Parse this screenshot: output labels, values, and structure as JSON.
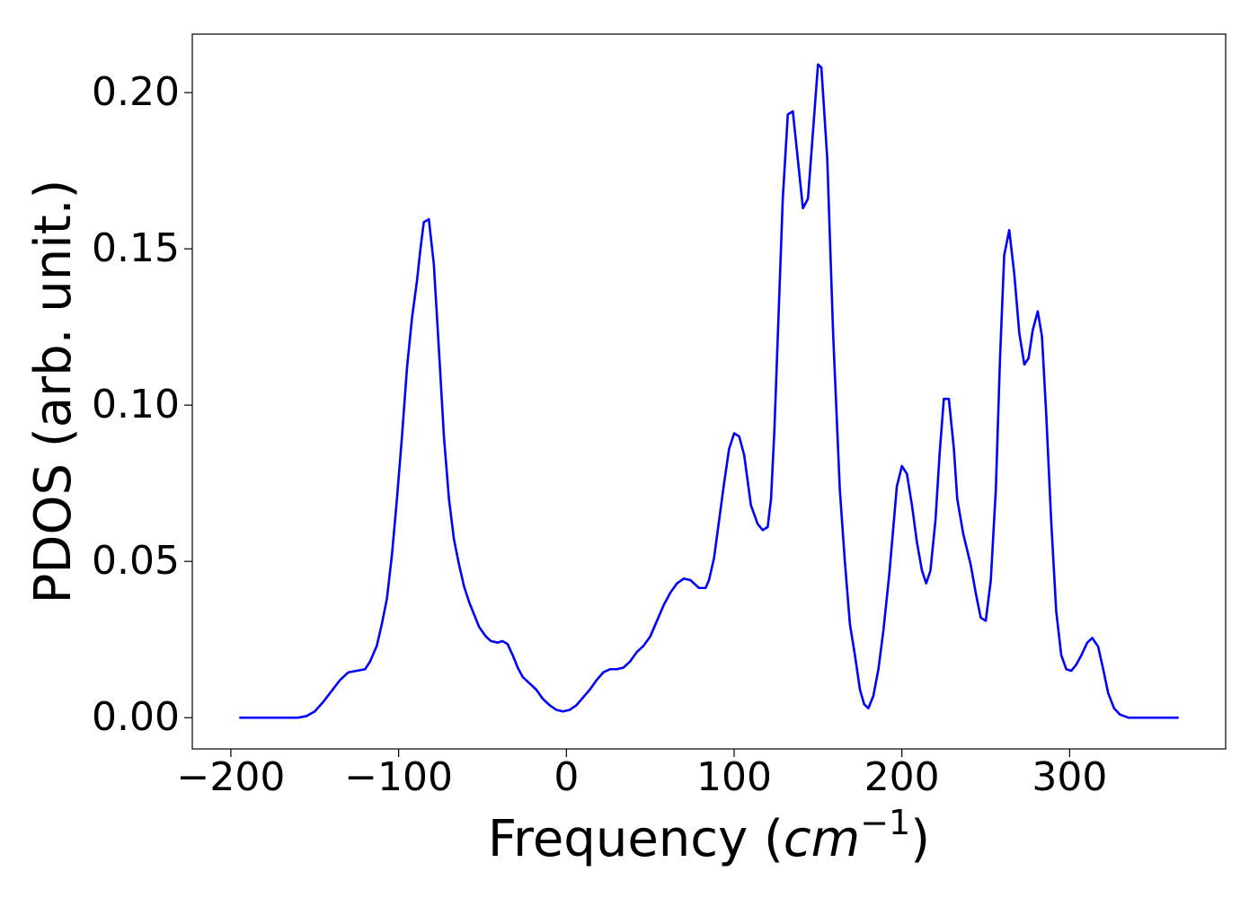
{
  "chart_data": {
    "type": "line",
    "xlabel": [
      "Frequency (",
      "cm",
      "−1",
      ")"
    ],
    "ylabel": "PDOS (arb. unit.)",
    "x": [
      -195,
      -160,
      -155,
      -150,
      -145,
      -140,
      -135,
      -130,
      -125,
      -120,
      -117,
      -113,
      -110,
      -107,
      -104,
      -101,
      -98,
      -95,
      -92,
      -89,
      -87,
      -85,
      -82,
      -79,
      -76,
      -73,
      -70,
      -67,
      -64,
      -61,
      -58,
      -55,
      -52,
      -48,
      -45,
      -41,
      -38,
      -35,
      -32,
      -29,
      -26,
      -22,
      -18,
      -14,
      -10,
      -6,
      -2,
      2,
      6,
      10,
      14,
      18,
      22,
      26,
      30,
      34,
      38,
      42,
      46,
      50,
      54,
      58,
      62,
      66,
      70,
      74,
      79,
      83,
      85,
      88,
      91,
      94,
      97,
      100,
      103,
      106,
      110,
      114,
      117,
      120,
      122,
      124,
      129,
      132,
      135,
      141,
      144,
      150,
      152,
      155.5,
      159,
      163,
      166,
      169,
      172,
      175,
      177.5,
      180,
      183,
      186,
      189,
      192.5,
      195,
      197,
      200,
      203,
      206,
      209,
      212,
      214.5,
      217,
      220,
      222.5,
      225,
      228,
      231,
      233,
      236.5,
      241,
      244,
      247,
      250,
      253,
      256,
      258.5,
      261,
      264,
      267,
      270,
      273,
      275.5,
      278,
      281,
      283.5,
      286,
      289,
      292,
      295,
      298,
      301,
      304,
      307,
      310.5,
      313.5,
      317,
      320,
      323,
      326.5,
      330,
      335,
      365
    ],
    "values": [
      0,
      0,
      0.0005,
      0.002,
      0.005,
      0.0085,
      0.012,
      0.0145,
      0.015,
      0.0155,
      0.018,
      0.023,
      0.03,
      0.038,
      0.052,
      0.07,
      0.09,
      0.112,
      0.128,
      0.14,
      0.15,
      0.1585,
      0.1595,
      0.145,
      0.118,
      0.09,
      0.07,
      0.057,
      0.049,
      0.042,
      0.037,
      0.033,
      0.029,
      0.026,
      0.0245,
      0.024,
      0.0245,
      0.0235,
      0.02,
      0.016,
      0.013,
      0.011,
      0.009,
      0.006,
      0.004,
      0.0025,
      0.002,
      0.0025,
      0.004,
      0.0065,
      0.009,
      0.012,
      0.0145,
      0.0155,
      0.0155,
      0.016,
      0.018,
      0.021,
      0.023,
      0.026,
      0.031,
      0.036,
      0.04,
      0.043,
      0.0445,
      0.044,
      0.0415,
      0.0415,
      0.044,
      0.051,
      0.063,
      0.075,
      0.086,
      0.091,
      0.09,
      0.084,
      0.068,
      0.062,
      0.06,
      0.061,
      0.07,
      0.092,
      0.166,
      0.193,
      0.194,
      0.163,
      0.166,
      0.209,
      0.208,
      0.179,
      0.123,
      0.073,
      0.05,
      0.03,
      0.02,
      0.009,
      0.0043,
      0.003,
      0.007,
      0.0155,
      0.028,
      0.046,
      0.0615,
      0.074,
      0.0805,
      0.078,
      0.068,
      0.056,
      0.047,
      0.043,
      0.047,
      0.063,
      0.0845,
      0.102,
      0.102,
      0.086,
      0.07,
      0.059,
      0.049,
      0.04,
      0.032,
      0.031,
      0.044,
      0.073,
      0.115,
      0.148,
      0.156,
      0.142,
      0.123,
      0.113,
      0.115,
      0.124,
      0.13,
      0.122,
      0.0975,
      0.063,
      0.034,
      0.02,
      0.0155,
      0.015,
      0.017,
      0.02,
      0.024,
      0.0255,
      0.0227,
      0.0155,
      0.0078,
      0.003,
      0.001,
      0,
      0
    ],
    "color": "#0000ff",
    "xlim": [
      -223,
      393
    ],
    "ylim": [
      -0.01,
      0.2187
    ],
    "xticks": [
      {
        "value": -200,
        "label": "−200"
      },
      {
        "value": -100,
        "label": "−100"
      },
      0,
      100,
      200,
      300
    ],
    "yticks": [
      {
        "value": 0,
        "label": "0.00"
      },
      {
        "value": 0.05,
        "label": "0.05"
      },
      {
        "value": 0.1,
        "label": "0.10"
      },
      {
        "value": 0.15,
        "label": "0.15"
      },
      {
        "value": 0.2,
        "label": "0.20"
      }
    ]
  }
}
